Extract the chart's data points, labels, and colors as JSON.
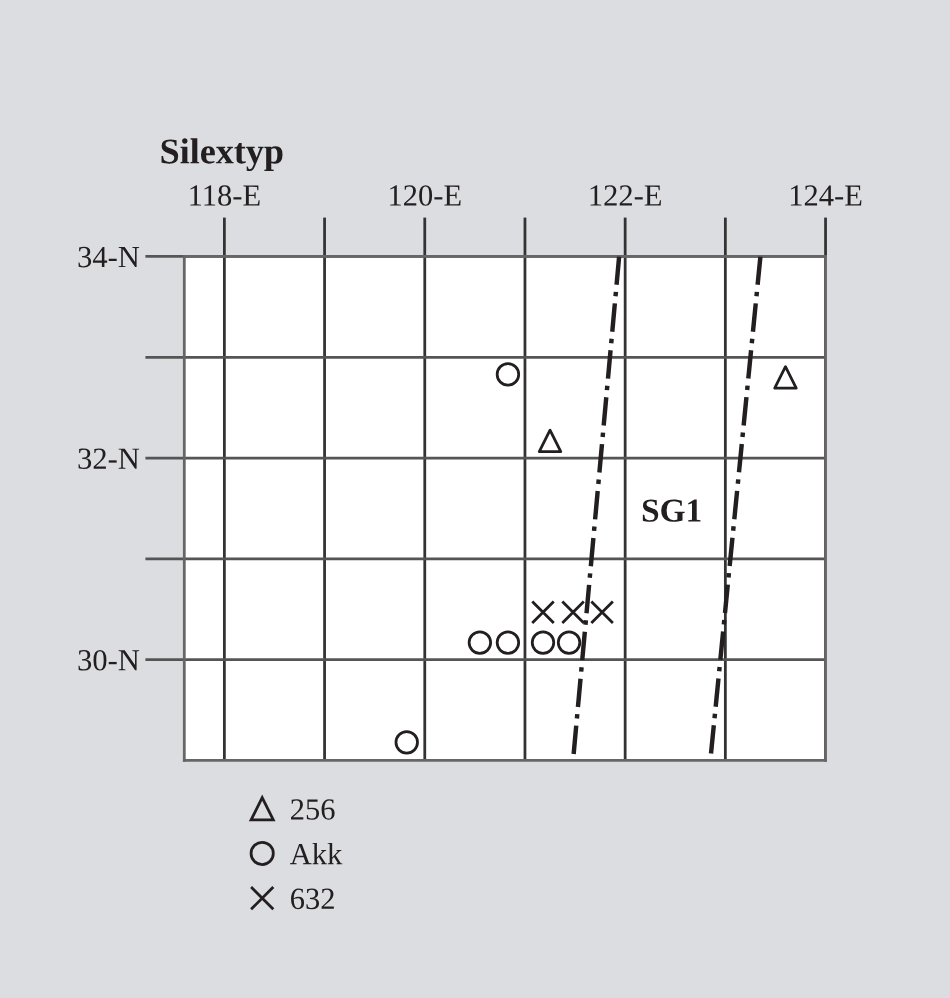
{
  "chart_data": {
    "type": "scatter",
    "title": "Silextyp",
    "xlim": [
      117.6,
      124
    ],
    "ylim": [
      29,
      34
    ],
    "xticks": [
      {
        "value": 118,
        "label": "118-E"
      },
      {
        "value": 119,
        "label": null
      },
      {
        "value": 120,
        "label": "120-E"
      },
      {
        "value": 121,
        "label": null
      },
      {
        "value": 122,
        "label": "122-E"
      },
      {
        "value": 123,
        "label": null
      },
      {
        "value": 124,
        "label": "124-E"
      }
    ],
    "yticks": [
      {
        "value": 30,
        "label": "30-N"
      },
      {
        "value": 31,
        "label": null
      },
      {
        "value": 32,
        "label": "32-N"
      },
      {
        "value": 33,
        "label": null
      },
      {
        "value": 34,
        "label": "34-N"
      }
    ],
    "grid": true,
    "legend": "bottom left",
    "series": [
      {
        "name": "256",
        "color": "#231f20",
        "marker": "triangle",
        "x": [
          121.25,
          123.6
        ],
        "values": [
          32.17,
          32.8
        ]
      },
      {
        "name": "Akk",
        "color": "#231f20",
        "marker": "circle",
        "x": [
          120.83,
          119.82,
          120.55,
          120.83,
          121.18,
          121.44
        ],
        "values": [
          32.83,
          29.18,
          30.17,
          30.17,
          30.17,
          30.17
        ]
      },
      {
        "name": "632",
        "color": "#231f20",
        "marker": "cross",
        "x": [
          121.18,
          121.48,
          121.77
        ],
        "values": [
          30.47,
          30.47,
          30.47
        ]
      },
      {
        "type": "line",
        "color": "#231f20",
        "line_style": "dashdot",
        "marker": "none",
        "x": [
          121.94,
          121.48
        ],
        "values": [
          34,
          29
        ]
      },
      {
        "type": "line",
        "color": "#231f20",
        "line_style": "dashdot",
        "marker": "none",
        "x": [
          123.35,
          122.85
        ],
        "values": [
          34,
          29
        ]
      }
    ],
    "annotations": [
      "SG1"
    ]
  }
}
